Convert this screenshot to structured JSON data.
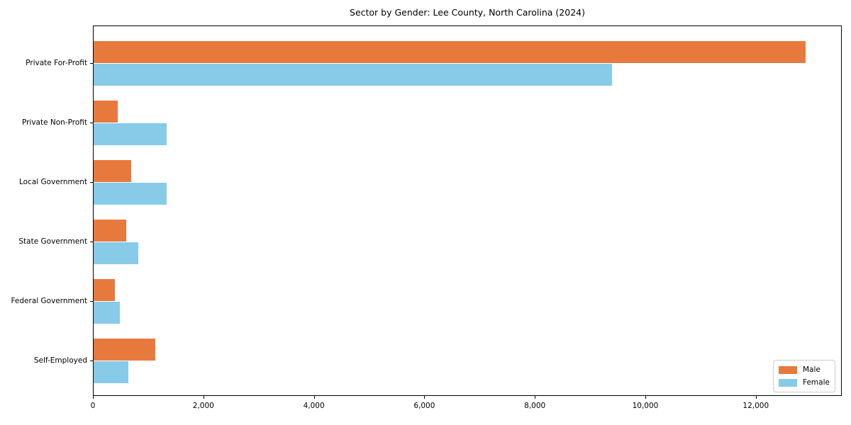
{
  "title": "Sector by Gender: Lee County, North Carolina (2024)",
  "chart_data": {
    "type": "bar",
    "orientation": "horizontal",
    "title": "Sector by Gender: Lee County, North Carolina (2024)",
    "xlabel": "",
    "ylabel": "",
    "categories": [
      "Private For-Profit",
      "Private Non-Profit",
      "Local Government",
      "State Government",
      "Federal Government",
      "Self-Employed"
    ],
    "series": [
      {
        "name": "Male",
        "color": "#E8793D",
        "values": [
          12890,
          440,
          675,
          590,
          380,
          1120
        ]
      },
      {
        "name": "Female",
        "color": "#87CBE8",
        "values": [
          9380,
          1320,
          1320,
          805,
          470,
          625
        ]
      }
    ],
    "xlim": [
      0,
      13556
    ],
    "x_ticks": [
      0,
      2000,
      4000,
      6000,
      8000,
      10000,
      12000
    ],
    "x_tick_labels": [
      "0",
      "2,000",
      "4,000",
      "6,000",
      "8,000",
      "10,000",
      "12,000"
    ],
    "grid": false,
    "legend": {
      "position": "lower right",
      "entries": [
        "Male",
        "Female"
      ]
    }
  },
  "colors": {
    "male": "#E8793D",
    "female": "#87CBE8",
    "spine": "#000000",
    "text": "#000000",
    "legend_border": "#CCCCCC",
    "background": "#FFFFFF"
  }
}
